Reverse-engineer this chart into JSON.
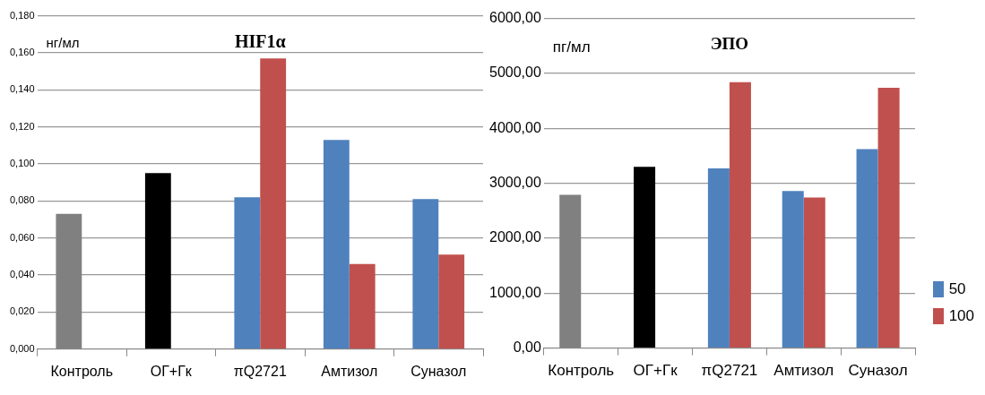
{
  "chart_data": [
    {
      "type": "bar",
      "title": "HIF1α",
      "ylabel": "нг/мл",
      "categories": [
        "Контроль",
        "ОГ+Гк",
        "πQ2721",
        "Амтизол",
        "Суназол"
      ],
      "series": [
        {
          "color": "#4f81bd",
          "colors": [
            "#808080",
            "#000000",
            "#4f81bd",
            "#4f81bd",
            "#4f81bd"
          ],
          "values": [
            0.073,
            0.095,
            0.082,
            0.113,
            0.081
          ]
        },
        {
          "color": "#c0504d",
          "values": [
            null,
            null,
            0.157,
            0.046,
            0.051
          ]
        }
      ],
      "ylim": [
        0,
        0.18
      ],
      "yticks": [
        {
          "value": 0,
          "label": "0,000"
        },
        {
          "value": 0.02,
          "label": "0,020"
        },
        {
          "value": 0.04,
          "label": "0,040"
        },
        {
          "value": 0.06,
          "label": "0,060"
        },
        {
          "value": 0.08,
          "label": "0,080"
        },
        {
          "value": 0.1,
          "label": "0,100"
        },
        {
          "value": 0.12,
          "label": "0,120"
        },
        {
          "value": 0.14,
          "label": "0,140"
        },
        {
          "value": 0.16,
          "label": "0,160"
        },
        {
          "value": 0.18,
          "label": "0,180"
        }
      ],
      "grid": "y",
      "legend": false
    },
    {
      "type": "bar",
      "title": "ЭПО",
      "ylabel": "пг/мл",
      "categories": [
        "Контроль",
        "ОГ+Гк",
        "πQ2721",
        "Амтизол",
        "Суназол"
      ],
      "series": [
        {
          "name": "50",
          "color": "#4f81bd",
          "colors": [
            "#808080",
            "#000000",
            "#4f81bd",
            "#4f81bd",
            "#4f81bd"
          ],
          "values": [
            2790,
            3300,
            3270,
            2860,
            3620
          ]
        },
        {
          "name": "100",
          "color": "#c0504d",
          "values": [
            null,
            null,
            4840,
            2740,
            4740
          ]
        }
      ],
      "ylim": [
        0,
        6000
      ],
      "yticks": [
        {
          "value": 0,
          "label": "0,00"
        },
        {
          "value": 1000,
          "label": "1000,00"
        },
        {
          "value": 2000,
          "label": "2000,00"
        },
        {
          "value": 3000,
          "label": "3000,00"
        },
        {
          "value": 4000,
          "label": "4000,00"
        },
        {
          "value": 5000,
          "label": "5000,00"
        },
        {
          "value": 6000,
          "label": "6000,00"
        }
      ],
      "grid": "y",
      "legend": "right"
    }
  ]
}
